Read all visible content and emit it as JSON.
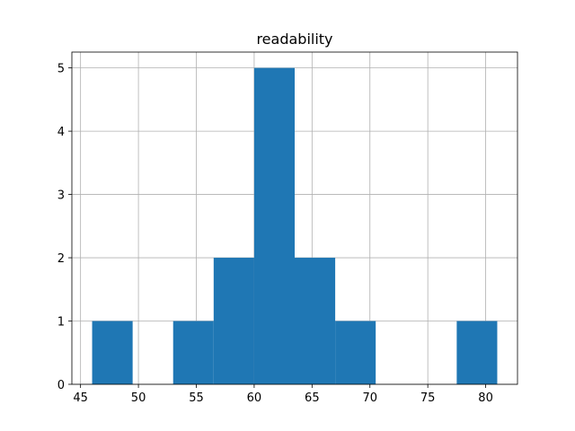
{
  "chart_data": {
    "type": "bar",
    "title": "readability",
    "xlabel": "",
    "ylabel": "",
    "bins": [
      {
        "x0": 46.0,
        "x1": 49.5,
        "count": 1
      },
      {
        "x0": 49.5,
        "x1": 53.0,
        "count": 0
      },
      {
        "x0": 53.0,
        "x1": 56.5,
        "count": 1
      },
      {
        "x0": 56.5,
        "x1": 60.0,
        "count": 2
      },
      {
        "x0": 60.0,
        "x1": 63.5,
        "count": 5
      },
      {
        "x0": 63.5,
        "x1": 67.0,
        "count": 2
      },
      {
        "x0": 67.0,
        "x1": 70.5,
        "count": 1
      },
      {
        "x0": 70.5,
        "x1": 74.0,
        "count": 0
      },
      {
        "x0": 74.0,
        "x1": 77.5,
        "count": 0
      },
      {
        "x0": 77.5,
        "x1": 81.0,
        "count": 1
      }
    ],
    "xlim": [
      44.25,
      82.75
    ],
    "ylim": [
      0,
      5.25
    ],
    "xticks": [
      45,
      50,
      55,
      60,
      65,
      70,
      75,
      80
    ],
    "yticks": [
      0,
      1,
      2,
      3,
      4,
      5
    ],
    "grid": true,
    "bar_color": "#1f77b4"
  }
}
